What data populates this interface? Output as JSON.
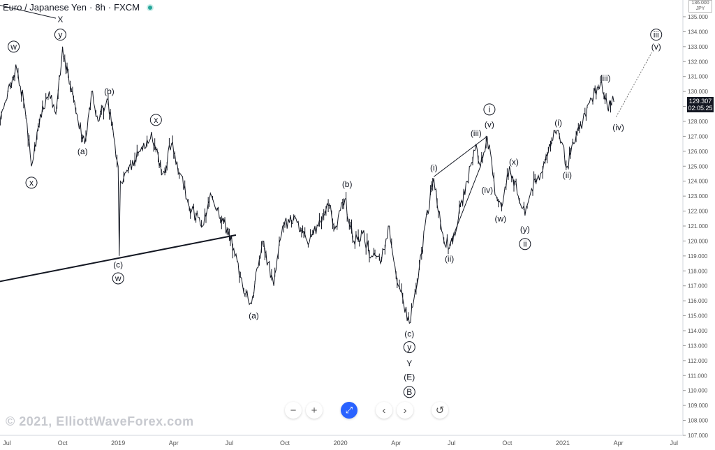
{
  "header": {
    "symbol": "Euro / Japanese Yen",
    "interval": "8h",
    "source": "FXCM"
  },
  "watermark": "© 2021, ElliottWaveForex.com",
  "price_badge": {
    "price": "129.307",
    "countdown": "02:05:25",
    "currency": "JPY",
    "currency_top": "136.000"
  },
  "controls": [
    "−",
    "+",
    "⤢",
    "‹",
    "›",
    "↺"
  ],
  "colors": {
    "price": "#131722",
    "axis_text": "#555555",
    "live_dot": "#26a69a",
    "control_accent": "#2962ff"
  },
  "chart_data": {
    "type": "line",
    "title": "",
    "ylim": [
      107,
      136
    ],
    "y_ticks": [
      107,
      108,
      109,
      110,
      111,
      112,
      113,
      114,
      115,
      116,
      117,
      118,
      119,
      120,
      121,
      122,
      123,
      124,
      125,
      126,
      127,
      128,
      129,
      130,
      131,
      132,
      133,
      134,
      135
    ],
    "x_ticks": [
      {
        "label": "Jul",
        "t": 2018.5
      },
      {
        "label": "Oct",
        "t": 2018.75
      },
      {
        "label": "2019",
        "t": 2019.0
      },
      {
        "label": "Apr",
        "t": 2019.25
      },
      {
        "label": "Jul",
        "t": 2019.5
      },
      {
        "label": "Oct",
        "t": 2019.75
      },
      {
        "label": "2020",
        "t": 2020.0
      },
      {
        "label": "Apr",
        "t": 2020.25
      },
      {
        "label": "Jul",
        "t": 2020.5
      },
      {
        "label": "Oct",
        "t": 2020.75
      },
      {
        "label": "2021",
        "t": 2021.0
      },
      {
        "label": "Apr",
        "t": 2021.25
      },
      {
        "label": "Jul",
        "t": 2021.5
      }
    ],
    "series": [
      {
        "values": [
          [
            2018.46,
            127.8
          ],
          [
            2018.5,
            129.5
          ],
          [
            2018.54,
            131.8
          ],
          [
            2018.58,
            129.0
          ],
          [
            2018.61,
            125.0
          ],
          [
            2018.65,
            128.5
          ],
          [
            2018.69,
            130.0
          ],
          [
            2018.72,
            128.5
          ],
          [
            2018.75,
            133.0
          ],
          [
            2018.78,
            130.5
          ],
          [
            2018.82,
            128.0
          ],
          [
            2018.85,
            126.5
          ],
          [
            2018.88,
            130.0
          ],
          [
            2018.91,
            128.0
          ],
          [
            2018.95,
            129.5
          ],
          [
            2018.98,
            127.0
          ],
          [
            2019.0,
            125.0
          ],
          [
            2019.005,
            119.0
          ],
          [
            2019.01,
            124.0
          ],
          [
            2019.05,
            125.0
          ],
          [
            2019.1,
            126.0
          ],
          [
            2019.15,
            127.3
          ],
          [
            2019.2,
            124.5
          ],
          [
            2019.24,
            126.5
          ],
          [
            2019.28,
            124.5
          ],
          [
            2019.33,
            122.0
          ],
          [
            2019.38,
            121.0
          ],
          [
            2019.42,
            123.0
          ],
          [
            2019.47,
            121.5
          ],
          [
            2019.52,
            119.5
          ],
          [
            2019.56,
            117.0
          ],
          [
            2019.6,
            115.8
          ],
          [
            2019.65,
            120.0
          ],
          [
            2019.7,
            117.0
          ],
          [
            2019.74,
            121.0
          ],
          [
            2019.8,
            121.5
          ],
          [
            2019.85,
            120.0
          ],
          [
            2019.9,
            121.0
          ],
          [
            2019.94,
            122.5
          ],
          [
            2019.98,
            121.0
          ],
          [
            2020.02,
            122.8
          ],
          [
            2020.06,
            120.0
          ],
          [
            2020.1,
            120.5
          ],
          [
            2020.14,
            119.0
          ],
          [
            2020.18,
            118.5
          ],
          [
            2020.22,
            121.0
          ],
          [
            2020.26,
            117.0
          ],
          [
            2020.31,
            114.5
          ],
          [
            2020.35,
            117.5
          ],
          [
            2020.38,
            121.0
          ],
          [
            2020.42,
            124.2
          ],
          [
            2020.46,
            120.5
          ],
          [
            2020.49,
            119.5
          ],
          [
            2020.53,
            121.5
          ],
          [
            2020.57,
            124.0
          ],
          [
            2020.61,
            126.5
          ],
          [
            2020.63,
            125.0
          ],
          [
            2020.66,
            127.0
          ],
          [
            2020.7,
            123.0
          ],
          [
            2020.73,
            122.5
          ],
          [
            2020.76,
            125.0
          ],
          [
            2020.8,
            123.0
          ],
          [
            2020.83,
            121.7
          ],
          [
            2020.86,
            123.5
          ],
          [
            2020.9,
            124.5
          ],
          [
            2020.94,
            126.5
          ],
          [
            2020.98,
            127.4
          ],
          [
            2021.02,
            125.0
          ],
          [
            2021.05,
            126.5
          ],
          [
            2021.09,
            128.0
          ],
          [
            2021.13,
            129.5
          ],
          [
            2021.17,
            130.6
          ],
          [
            2021.2,
            129.0
          ],
          [
            2021.23,
            129.3
          ]
        ]
      }
    ],
    "trendlines": [
      {
        "from": [
          2018.3,
          116.8
        ],
        "to": [
          2019.53,
          120.4
        ],
        "style": "solid"
      },
      {
        "from": [
          2020.42,
          124.3
        ],
        "to": [
          2020.66,
          127.0
        ],
        "style": "solid"
      },
      {
        "from": [
          2020.49,
          119.7
        ],
        "to": [
          2020.63,
          125.0
        ],
        "style": "solid"
      },
      {
        "from": [
          2021.24,
          128.3
        ],
        "to": [
          2021.4,
          132.6
        ],
        "style": "dotted"
      },
      {
        "from": [
          2018.4,
          136.0
        ],
        "to": [
          2018.72,
          134.9
        ],
        "style": "solid"
      }
    ],
    "annotations": [
      {
        "text": "X",
        "t": 2018.74,
        "v": 134.8,
        "circled": false
      },
      {
        "text": "y",
        "t": 2018.74,
        "v": 133.8,
        "circled": true
      },
      {
        "text": "w",
        "t": 2018.53,
        "v": 133.0,
        "circled": true
      },
      {
        "text": "x",
        "t": 2018.61,
        "v": 123.9,
        "circled": true
      },
      {
        "text": "(a)",
        "t": 2018.84,
        "v": 126.0,
        "circled": false
      },
      {
        "text": "(b)",
        "t": 2018.96,
        "v": 130.0,
        "circled": false
      },
      {
        "text": "x",
        "t": 2019.17,
        "v": 128.1,
        "circled": true
      },
      {
        "text": "(c)",
        "t": 2019.0,
        "v": 118.4,
        "circled": false
      },
      {
        "text": "w",
        "t": 2019.0,
        "v": 117.5,
        "circled": true
      },
      {
        "text": "(a)",
        "t": 2019.61,
        "v": 115.0,
        "circled": false
      },
      {
        "text": "(b)",
        "t": 2020.03,
        "v": 123.8,
        "circled": false
      },
      {
        "text": "(c)",
        "t": 2020.31,
        "v": 113.8,
        "circled": false
      },
      {
        "text": "y",
        "t": 2020.31,
        "v": 112.9,
        "circled": true
      },
      {
        "text": "Y",
        "t": 2020.31,
        "v": 111.8,
        "circled": false
      },
      {
        "text": "(E)",
        "t": 2020.31,
        "v": 110.9,
        "circled": false
      },
      {
        "text": "B",
        "t": 2020.31,
        "v": 109.9,
        "circled": true
      },
      {
        "text": "(i)",
        "t": 2020.42,
        "v": 124.9,
        "circled": false
      },
      {
        "text": "(ii)",
        "t": 2020.49,
        "v": 118.8,
        "circled": false
      },
      {
        "text": "(iii)",
        "t": 2020.61,
        "v": 127.2,
        "circled": false
      },
      {
        "text": "(iv)",
        "t": 2020.66,
        "v": 123.4,
        "circled": false
      },
      {
        "text": "(v)",
        "t": 2020.67,
        "v": 127.8,
        "circled": false
      },
      {
        "text": "i",
        "t": 2020.67,
        "v": 128.8,
        "circled": true
      },
      {
        "text": "(w)",
        "t": 2020.72,
        "v": 121.5,
        "circled": false
      },
      {
        "text": "(x)",
        "t": 2020.78,
        "v": 125.3,
        "circled": false
      },
      {
        "text": "(y)",
        "t": 2020.83,
        "v": 120.8,
        "circled": false
      },
      {
        "text": "ii",
        "t": 2020.83,
        "v": 119.8,
        "circled": true
      },
      {
        "text": "(i)",
        "t": 2020.98,
        "v": 127.9,
        "circled": false
      },
      {
        "text": "(ii)",
        "t": 2021.02,
        "v": 124.4,
        "circled": false
      },
      {
        "text": "(iii)",
        "t": 2021.19,
        "v": 130.9,
        "circled": false
      },
      {
        "text": "(iv)",
        "t": 2021.25,
        "v": 127.6,
        "circled": false
      },
      {
        "text": "iii",
        "t": 2021.42,
        "v": 133.8,
        "circled": true
      },
      {
        "text": "(v)",
        "t": 2021.42,
        "v": 133.0,
        "circled": false
      }
    ]
  }
}
